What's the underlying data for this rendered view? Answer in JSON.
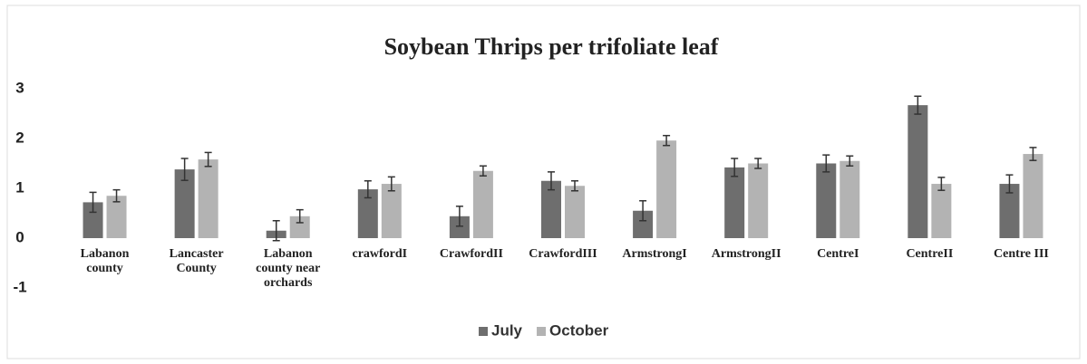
{
  "chart_data": {
    "type": "bar",
    "title": "Soybean Thrips per trifoliate leaf",
    "categories": [
      "Labanon county",
      "Lancaster County",
      "Labanon county near orchards",
      "crawfordI",
      "CrawfordII",
      "CrawfordIII",
      "ArmstrongI",
      "ArmstrongII",
      "CentreI",
      "CentreII",
      "Centre III"
    ],
    "series": [
      {
        "name": "July",
        "color": "#6e6e6e",
        "values": [
          0.72,
          1.38,
          0.15,
          0.98,
          0.44,
          1.15,
          0.55,
          1.42,
          1.5,
          2.67,
          1.09
        ],
        "errors": [
          0.2,
          0.22,
          0.2,
          0.17,
          0.2,
          0.18,
          0.2,
          0.18,
          0.17,
          0.18,
          0.18
        ]
      },
      {
        "name": "October",
        "color": "#b3b3b3",
        "values": [
          0.85,
          1.58,
          0.44,
          1.09,
          1.35,
          1.05,
          1.96,
          1.5,
          1.55,
          1.09,
          1.69
        ],
        "errors": [
          0.12,
          0.14,
          0.13,
          0.14,
          0.1,
          0.1,
          0.1,
          0.1,
          0.1,
          0.13,
          0.13
        ]
      }
    ],
    "ylim": [
      -1,
      3
    ],
    "yticks": [
      -1,
      0,
      1,
      2,
      3
    ],
    "grid": false,
    "legend": "bottom"
  }
}
